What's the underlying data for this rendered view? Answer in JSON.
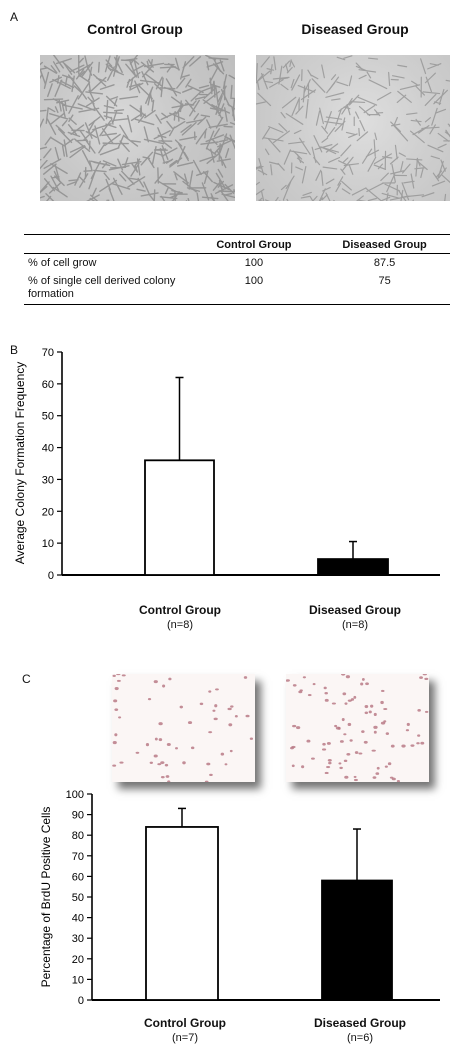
{
  "panels": {
    "a": {
      "letter": "A",
      "control_title": "Control Group",
      "diseased_title": "Diseased Group"
    },
    "b": {
      "letter": "B"
    },
    "c": {
      "letter": "C"
    }
  },
  "table": {
    "headers": [
      "",
      "Control Group",
      "Diseased Group"
    ],
    "rows": [
      {
        "label": "% of cell grow",
        "control": "100",
        "diseased": "87.5"
      },
      {
        "label": "% of single cell derived colony formation",
        "control": "100",
        "diseased": "75"
      }
    ]
  },
  "chart_data": [
    {
      "type": "bar",
      "panel": "B",
      "categories": [
        "Control Group",
        "Diseased Group"
      ],
      "n_labels": [
        "(n=8)",
        "(n=8)"
      ],
      "values": [
        36,
        5
      ],
      "error_upper": [
        26,
        5.5
      ],
      "bar_colors": [
        "#ffffff",
        "#000000"
      ],
      "ylabel": "Average Colony Formation Frequency",
      "ylim": [
        0,
        70
      ],
      "yticks": [
        0,
        10,
        20,
        30,
        40,
        50,
        60,
        70
      ],
      "xlabel": "",
      "grid": false
    },
    {
      "type": "bar",
      "panel": "C",
      "categories": [
        "Control Group",
        "Diseased Group"
      ],
      "n_labels": [
        "(n=7)",
        "(n=6)"
      ],
      "values": [
        84,
        58
      ],
      "error_upper": [
        9,
        25
      ],
      "bar_colors": [
        "#ffffff",
        "#000000"
      ],
      "ylabel": "Percentage of BrdU Positive Cells",
      "ylim": [
        0,
        100
      ],
      "yticks": [
        0,
        10,
        20,
        30,
        40,
        50,
        60,
        70,
        80,
        90,
        100
      ],
      "xlabel": "",
      "grid": false
    }
  ]
}
